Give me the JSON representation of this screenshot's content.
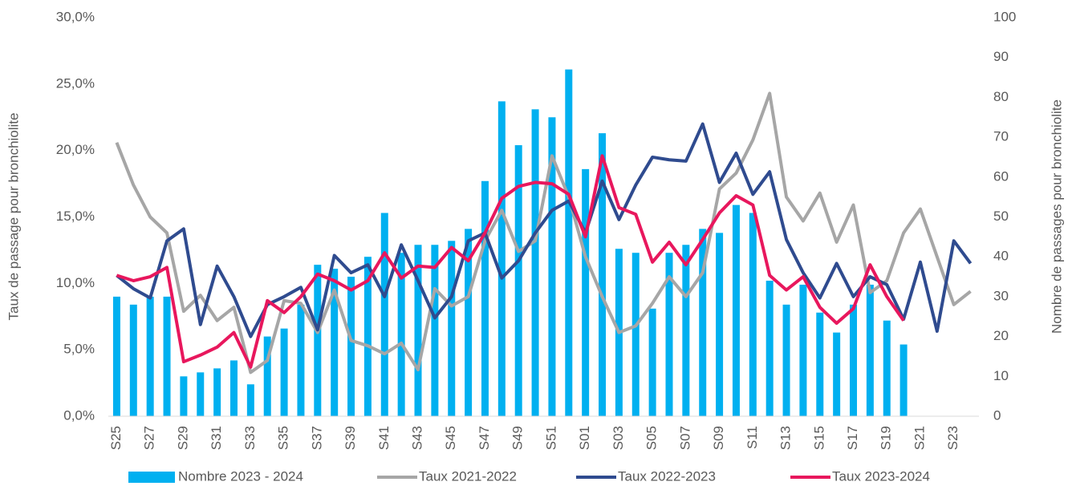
{
  "chart_data": {
    "type": "bar",
    "y_label": "Taux de passage pour bronchiolite",
    "y2_label": "Nombre de passages pour bronchiolite",
    "categories": [
      "S25",
      null,
      "S27",
      null,
      "S29",
      null,
      "S31",
      null,
      "S33",
      null,
      "S35",
      null,
      "S37",
      null,
      "S39",
      null,
      "S41",
      null,
      "S43",
      null,
      "S45",
      null,
      "S47",
      null,
      "S49",
      null,
      "S51",
      null,
      "S01",
      null,
      "S03",
      null,
      "S05",
      null,
      "S07",
      null,
      "S09",
      null,
      "S11",
      null,
      "S13",
      null,
      "S15",
      null,
      "S17",
      null,
      "S19",
      null,
      "S21",
      null,
      "S23",
      null
    ],
    "ylim": [
      0,
      30
    ],
    "yticks": [
      {
        "value": 0,
        "label": "0,0%"
      },
      {
        "value": 5,
        "label": "5,0%"
      },
      {
        "value": 10,
        "label": "10,0%"
      },
      {
        "value": 15,
        "label": "15,0%"
      },
      {
        "value": 20,
        "label": "20,0%"
      },
      {
        "value": 25,
        "label": "25,0%"
      },
      {
        "value": 30,
        "label": "30,0%"
      }
    ],
    "y2lim": [
      0,
      100
    ],
    "y2ticks": [
      0,
      10,
      20,
      30,
      40,
      50,
      60,
      70,
      80,
      90,
      100
    ],
    "series": [
      {
        "name": "Nombre 2023 - 2024",
        "type": "bar",
        "axis": "y2",
        "color": "#00b0f0",
        "values": [
          30,
          28,
          30,
          30,
          10,
          11,
          12,
          14,
          8,
          20,
          22,
          28,
          38,
          37,
          35,
          40,
          51,
          41,
          43,
          43,
          44,
          47,
          59,
          79,
          68,
          77,
          75,
          87,
          62,
          71,
          42,
          41,
          27,
          41,
          43,
          47,
          46,
          53,
          51,
          34,
          28,
          33,
          26,
          21,
          28,
          33,
          24,
          18,
          null,
          null,
          null,
          null
        ]
      },
      {
        "name": "Taux 2021-2022",
        "type": "line",
        "color": "#a6a6a6",
        "values": [
          20.6,
          17.4,
          15.0,
          13.8,
          7.9,
          9.1,
          7.2,
          8.2,
          3.3,
          4.2,
          8.7,
          8.5,
          6.3,
          9.5,
          5.7,
          5.3,
          4.7,
          5.5,
          3.5,
          9.6,
          8.3,
          9.0,
          13.2,
          15.5,
          12.4,
          13.2,
          19.6,
          16.5,
          12.0,
          9.0,
          6.3,
          6.8,
          8.5,
          10.5,
          9.0,
          10.8,
          17.1,
          18.3,
          20.8,
          24.3,
          16.5,
          14.7,
          16.8,
          13.1,
          15.9,
          9.3,
          10.2,
          13.8,
          15.6,
          12.0,
          8.4,
          9.4
        ]
      },
      {
        "name": "Taux 2022-2023",
        "type": "line",
        "color": "#2f4b8f",
        "values": [
          10.6,
          9.6,
          8.9,
          13.2,
          14.1,
          6.9,
          11.3,
          9.0,
          6.0,
          8.4,
          9.0,
          9.7,
          6.5,
          12.1,
          10.8,
          11.4,
          9.0,
          12.9,
          10.2,
          7.4,
          9.0,
          13.2,
          13.8,
          10.4,
          11.7,
          13.8,
          15.5,
          16.2,
          13.8,
          17.7,
          14.8,
          17.4,
          19.5,
          19.3,
          19.2,
          22.0,
          17.6,
          19.8,
          16.7,
          18.4,
          13.3,
          10.8,
          8.9,
          11.5,
          9.0,
          10.5,
          9.9,
          7.3,
          11.6,
          6.4,
          13.2,
          11.5
        ]
      },
      {
        "name": "Taux 2023-2024",
        "type": "line",
        "color": "#e8175d",
        "values": [
          10.6,
          10.2,
          10.5,
          11.2,
          4.1,
          4.6,
          5.2,
          6.3,
          3.7,
          8.7,
          7.8,
          9.0,
          10.7,
          10.2,
          9.5,
          10.2,
          12.3,
          10.4,
          11.3,
          11.2,
          12.7,
          11.7,
          13.8,
          16.4,
          17.3,
          17.6,
          17.5,
          16.7,
          13.5,
          19.6,
          15.7,
          15.2,
          11.6,
          13.1,
          11.4,
          13.3,
          15.3,
          16.6,
          15.9,
          10.6,
          9.5,
          10.5,
          8.2,
          7.0,
          8.1,
          11.4,
          9.0,
          7.2,
          null,
          null,
          null,
          null
        ]
      }
    ]
  }
}
